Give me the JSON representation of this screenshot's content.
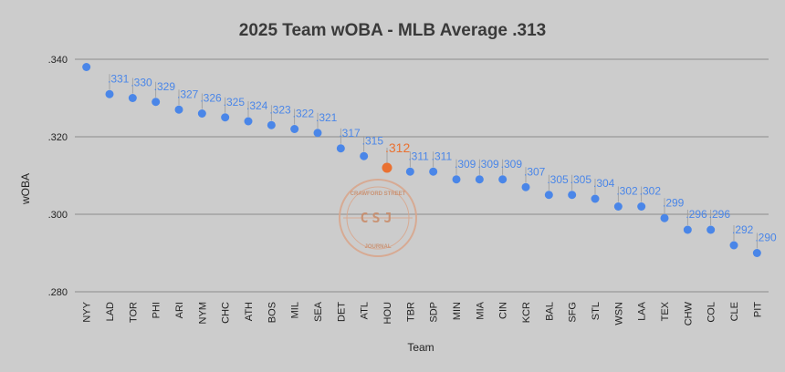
{
  "chart_data": {
    "type": "scatter",
    "title": "2025 Team wOBA - MLB Average .313",
    "xlabel": "Team",
    "ylabel": "wOBA",
    "ylim": [
      0.28,
      0.34
    ],
    "yticks": [
      ".340",
      ".320",
      ".300",
      ".280"
    ],
    "ytick_values": [
      0.34,
      0.32,
      0.3,
      0.28
    ],
    "categories": [
      "NYY",
      "LAD",
      "TOR",
      "PHI",
      "ARI",
      "NYM",
      "CHC",
      "ATH",
      "BOS",
      "MIL",
      "SEA",
      "DET",
      "ATL",
      "HOU",
      "TBR",
      "SDP",
      "MIN",
      "MIA",
      "CIN",
      "KCR",
      "BAL",
      "SFG",
      "STL",
      "WSN",
      "LAA",
      "TEX",
      "CHW",
      "COL",
      "CLE",
      "PIT"
    ],
    "values": [
      0.338,
      0.331,
      0.33,
      0.329,
      0.327,
      0.326,
      0.325,
      0.324,
      0.323,
      0.322,
      0.321,
      0.317,
      0.315,
      0.312,
      0.311,
      0.311,
      0.309,
      0.309,
      0.309,
      0.307,
      0.305,
      0.305,
      0.304,
      0.302,
      0.302,
      0.299,
      0.296,
      0.296,
      0.292,
      0.29
    ],
    "labels": [
      "",
      ".331",
      ".330",
      ".329",
      ".327",
      ".326",
      ".325",
      ".324",
      ".323",
      ".322",
      ".321",
      ".317",
      ".315",
      ".312",
      ".311",
      ".311",
      ".309",
      ".309",
      ".309",
      ".307",
      ".305",
      ".305",
      ".304",
      ".302",
      ".302",
      ".299",
      ".296",
      ".296",
      ".292",
      ".290"
    ],
    "highlight": "HOU",
    "point_color": "#4a86e8",
    "highlight_color": "#ea7131",
    "legend": "none",
    "grid": true
  },
  "watermark": {
    "top_text": "CRAWFORD STREET",
    "center_text": "CSJ",
    "bottom_text": "JOURNAL"
  }
}
